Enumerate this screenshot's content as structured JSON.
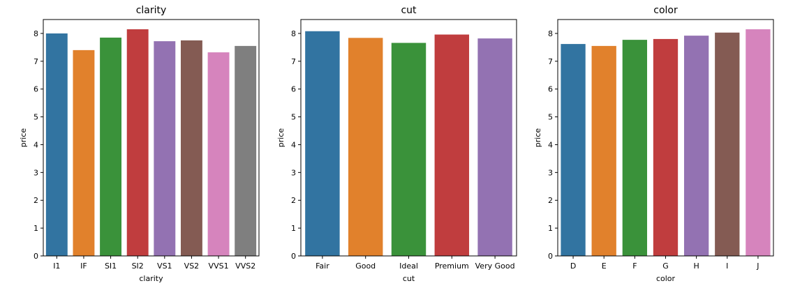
{
  "chart_data": [
    {
      "type": "bar",
      "title": "clarity",
      "xlabel": "clarity",
      "ylabel": "price",
      "categories": [
        "I1",
        "IF",
        "SI1",
        "SI2",
        "VS1",
        "VS2",
        "VVS1",
        "VVS2"
      ],
      "values": [
        8.0,
        7.4,
        7.85,
        8.15,
        7.72,
        7.75,
        7.32,
        7.55
      ],
      "ylim": [
        0,
        8.5
      ],
      "yticks": [
        "0",
        "1",
        "2",
        "3",
        "4",
        "5",
        "6",
        "7",
        "8"
      ],
      "colors": [
        "#3274a1",
        "#e1812c",
        "#3a923a",
        "#c03d3e",
        "#9372b2",
        "#845b53",
        "#d684bd",
        "#7f7f7f"
      ],
      "grid": false,
      "legend": "none"
    },
    {
      "type": "bar",
      "title": "cut",
      "xlabel": "cut",
      "ylabel": "price",
      "categories": [
        "Fair",
        "Good",
        "Ideal",
        "Premium",
        "Very Good"
      ],
      "values": [
        8.08,
        7.84,
        7.66,
        7.96,
        7.82
      ],
      "ylim": [
        0,
        8.5
      ],
      "yticks": [
        "0",
        "1",
        "2",
        "3",
        "4",
        "5",
        "6",
        "7",
        "8"
      ],
      "colors": [
        "#3274a1",
        "#e1812c",
        "#3a923a",
        "#c03d3e",
        "#9372b2"
      ],
      "grid": false,
      "legend": "none"
    },
    {
      "type": "bar",
      "title": "color",
      "xlabel": "color",
      "ylabel": "price",
      "categories": [
        "D",
        "E",
        "F",
        "G",
        "H",
        "I",
        "J"
      ],
      "values": [
        7.62,
        7.55,
        7.77,
        7.8,
        7.92,
        8.03,
        8.15
      ],
      "ylim": [
        0,
        8.5
      ],
      "yticks": [
        "0",
        "1",
        "2",
        "3",
        "4",
        "5",
        "6",
        "7",
        "8"
      ],
      "colors": [
        "#3274a1",
        "#e1812c",
        "#3a923a",
        "#c03d3e",
        "#9372b2",
        "#845b53",
        "#d684bd"
      ],
      "grid": false,
      "legend": "none"
    }
  ]
}
